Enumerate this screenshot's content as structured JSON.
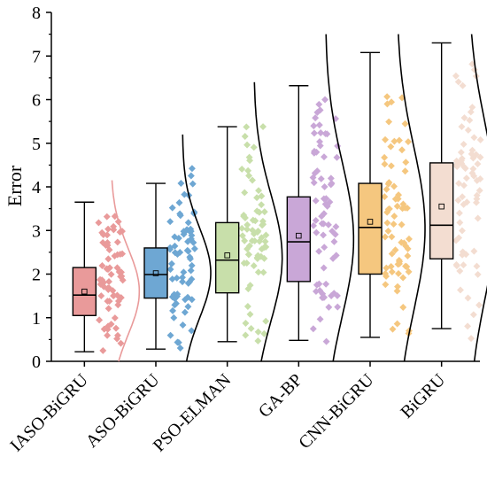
{
  "chart_data": {
    "type": "boxplot",
    "ylabel": "Error",
    "ylim": [
      0,
      8
    ],
    "yticks": [
      0,
      1,
      2,
      3,
      4,
      5,
      6,
      7,
      8
    ],
    "categories": [
      "IASO-BiGRU",
      "ASO-BiGRU",
      "PSO-ELMAN",
      "GA-BP",
      "CNN-BiGRU",
      "BiGRU"
    ],
    "boxes": [
      {
        "name": "IASO-BiGRU",
        "whisker_low": 0.22,
        "q1": 1.05,
        "median": 1.52,
        "q3": 2.15,
        "whisker_high": 3.65,
        "mean": 1.6,
        "color": "#e99a9a",
        "scatter_min": 0.2,
        "scatter_max": 3.65,
        "density_max": 4.15
      },
      {
        "name": "ASO-BiGRU",
        "whisker_low": 0.28,
        "q1": 1.45,
        "median": 1.99,
        "q3": 2.6,
        "whisker_high": 4.08,
        "mean": 2.02,
        "color": "#6ea7d3",
        "scatter_min": 0.25,
        "scatter_max": 4.6,
        "density_max": 5.2
      },
      {
        "name": "PSO-ELMAN",
        "whisker_low": 0.45,
        "q1": 1.57,
        "median": 2.32,
        "q3": 3.18,
        "whisker_high": 5.38,
        "mean": 2.43,
        "color": "#c8dfaa",
        "scatter_min": 0.3,
        "scatter_max": 5.4,
        "density_max": 6.4
      },
      {
        "name": "GA-BP",
        "whisker_low": 0.48,
        "q1": 1.83,
        "median": 2.74,
        "q3": 3.77,
        "whisker_high": 6.32,
        "mean": 2.88,
        "color": "#c9a7d7",
        "scatter_min": 0.45,
        "scatter_max": 6.25,
        "density_max": 7.5
      },
      {
        "name": "CNN-BiGRU",
        "whisker_low": 0.55,
        "q1": 2.0,
        "median": 3.07,
        "q3": 4.08,
        "whisker_high": 7.08,
        "mean": 3.2,
        "color": "#f5c77f",
        "scatter_min": 0.5,
        "scatter_max": 6.3,
        "density_max": 7.5
      },
      {
        "name": "BiGRU",
        "whisker_low": 0.75,
        "q1": 2.35,
        "median": 3.12,
        "q3": 4.55,
        "whisker_high": 7.3,
        "mean": 3.55,
        "color": "#f3ddd1",
        "scatter_min": 0.5,
        "scatter_max": 7.3,
        "density_max": 7.5
      }
    ],
    "grid": false,
    "legend": "none"
  }
}
